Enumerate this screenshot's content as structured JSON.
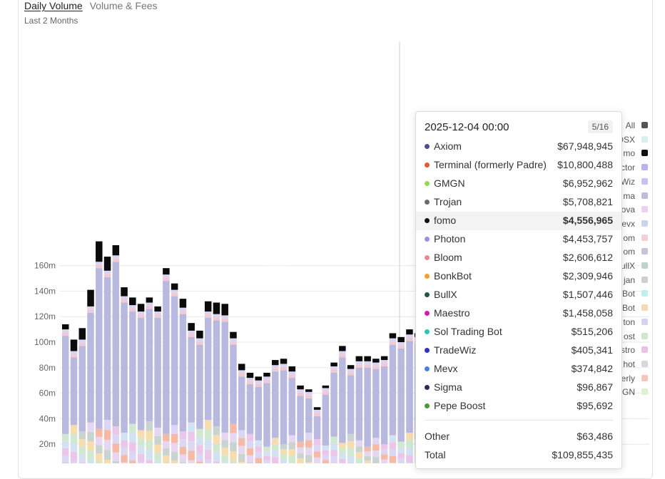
{
  "tabs": {
    "daily_volume": "Daily Volume",
    "volume_fees": "Volume & Fees"
  },
  "subtitle": "Last 2 Months",
  "chart_data": {
    "type": "bar",
    "stacked": true,
    "yticks": [
      "20m",
      "40m",
      "60m",
      "80m",
      "100m",
      "120m",
      "140m",
      "160m"
    ],
    "ylim": [
      0,
      180
    ],
    "grid": true,
    "totals": [
      114,
      102,
      111,
      141,
      179,
      167,
      176,
      143,
      135,
      130,
      135,
      128,
      158,
      146,
      134,
      115,
      109,
      132,
      131,
      130,
      108,
      83,
      76,
      73,
      76,
      86,
      87,
      81,
      66,
      63,
      49,
      66,
      84,
      97,
      82,
      89,
      89,
      87,
      89,
      107,
      104,
      110,
      107,
      111
    ],
    "top_segments": [
      4,
      9,
      9,
      13,
      16,
      11,
      8,
      7,
      6,
      6,
      4,
      4,
      5,
      5,
      7,
      6,
      6,
      8,
      9,
      9,
      5,
      5,
      4,
      3,
      3,
      4,
      4,
      4,
      3,
      2,
      2,
      2,
      3,
      4,
      3,
      4,
      4,
      3,
      3,
      4,
      4,
      4,
      3,
      4
    ]
  },
  "tooltip": {
    "date": "2025-12-04 00:00",
    "page": "5/16",
    "rows": [
      {
        "name": "Axiom",
        "value": "$67,948,945",
        "color": "#4b4f8f"
      },
      {
        "name": "Terminal (formerly Padre)",
        "value": "$10,800,488",
        "color": "#e35a2b"
      },
      {
        "name": "GMGN",
        "value": "$6,952,962",
        "color": "#8fdc4f"
      },
      {
        "name": "Trojan",
        "value": "$5,708,821",
        "color": "#6b6b6b"
      },
      {
        "name": "fomo",
        "value": "$4,556,965",
        "color": "#111111"
      },
      {
        "name": "Photon",
        "value": "$4,453,757",
        "color": "#a78be0"
      },
      {
        "name": "Bloom",
        "value": "$2,606,612",
        "color": "#e88a95"
      },
      {
        "name": "BonkBot",
        "value": "$2,309,946",
        "color": "#f0a030"
      },
      {
        "name": "BullX",
        "value": "$1,507,446",
        "color": "#1f5a3c"
      },
      {
        "name": "Maestro",
        "value": "$1,458,058",
        "color": "#d418b8"
      },
      {
        "name": "Sol Trading Bot",
        "value": "$515,206",
        "color": "#2cc4c0"
      },
      {
        "name": "TradeWiz",
        "value": "$405,341",
        "color": "#2d30c8"
      },
      {
        "name": "Mevx",
        "value": "$374,842",
        "color": "#4a7fe0"
      },
      {
        "name": "Sigma",
        "value": "$96,867",
        "color": "#2b2b55"
      },
      {
        "name": "Pepe Boost",
        "value": "$95,692",
        "color": "#4a9a3a"
      }
    ],
    "other_label": "Other",
    "other_value": "$63,486",
    "total_label": "Total",
    "total_value": "$109,855,435"
  },
  "legend": [
    {
      "label": "All",
      "color": "#555555"
    },
    {
      "label": "DSX",
      "color": "#d6f0f0"
    },
    {
      "label": "mo",
      "color": "#111111"
    },
    {
      "label": "ctor",
      "color": "#b9b5ec"
    },
    {
      "label": "Wiz",
      "color": "#c7c3f0"
    },
    {
      "label": "ma",
      "color": "#bdbdd6"
    },
    {
      "label": "ova",
      "color": "#ecd2ee"
    },
    {
      "label": "evx",
      "color": "#c9d5f0"
    },
    {
      "label": "om",
      "color": "#f4cfd6"
    },
    {
      "label": "om",
      "color": "#c7c3da"
    },
    {
      "label": "ullX",
      "color": "#bfd3c6"
    },
    {
      "label": "jan",
      "color": "#cfcfcf"
    },
    {
      "label": "Bot",
      "color": "#bff0ea"
    },
    {
      "label": "Bot",
      "color": "#f6dbb2"
    },
    {
      "label": "ton",
      "color": "#d6d2f0"
    },
    {
      "label": "ost",
      "color": "#cfe6cf"
    },
    {
      "label": "stro",
      "color": "#ecbfe8"
    },
    {
      "label": "hot",
      "color": "#d8d8d8"
    },
    {
      "label": "erly",
      "color": "#f6c6b6"
    },
    {
      "label": "GN",
      "color": "#dff2cf"
    }
  ]
}
